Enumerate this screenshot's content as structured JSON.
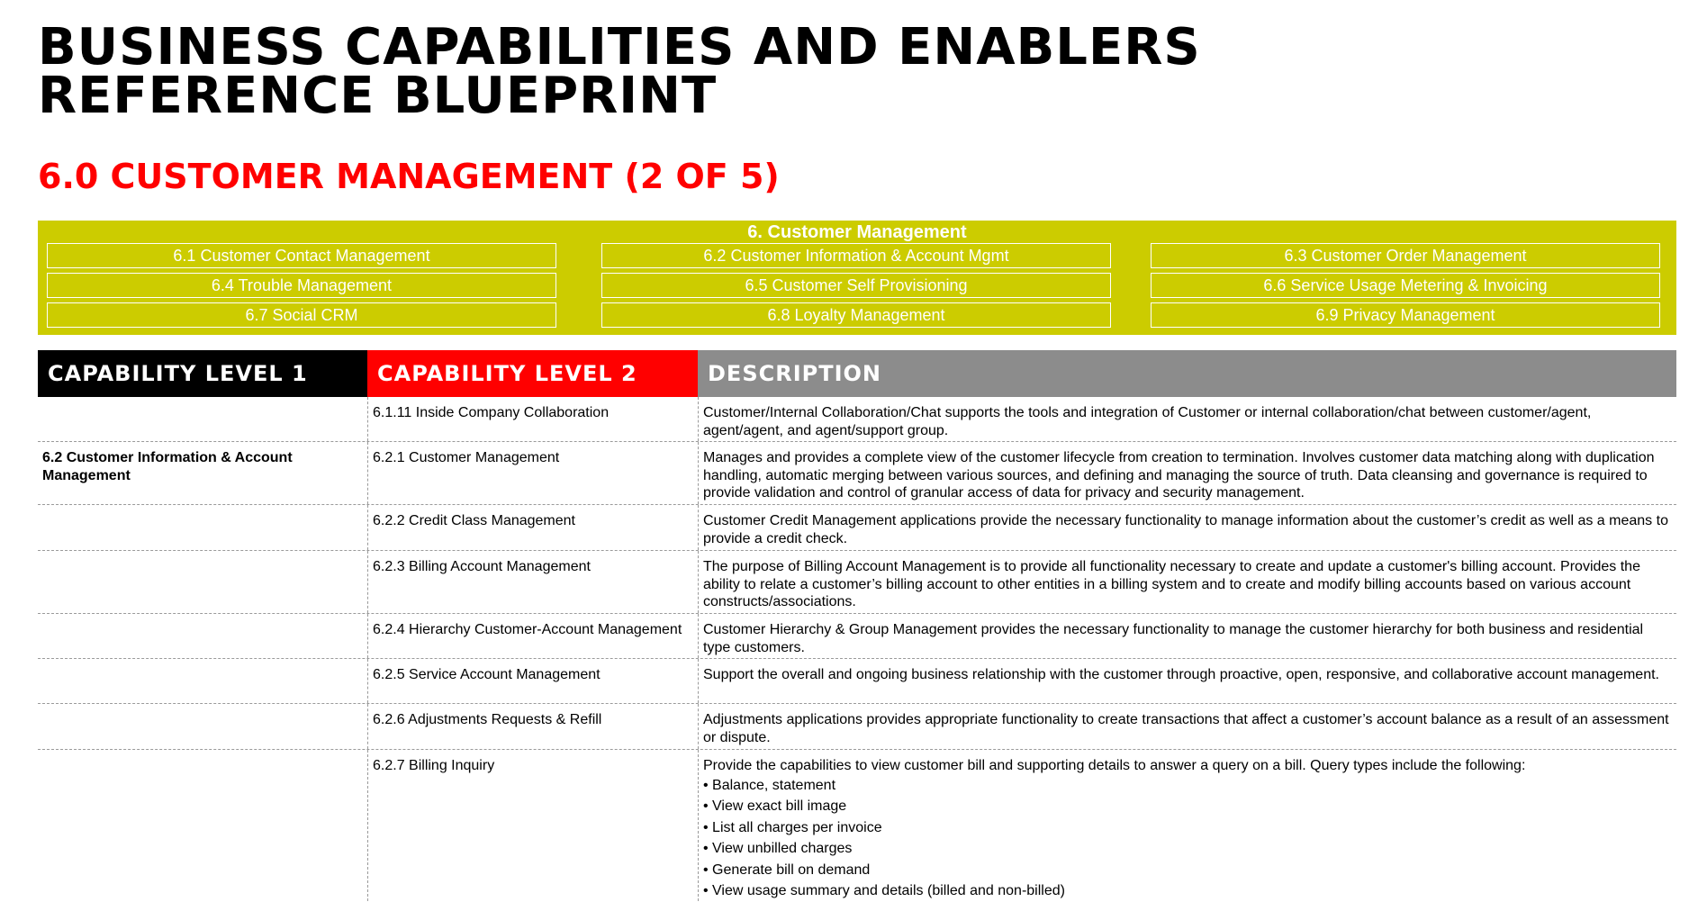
{
  "header": {
    "title_line1": "BUSINESS CAPABILITIES AND ENABLERS",
    "title_line2": "REFERENCE BLUEPRINT",
    "subtitle": "6.0 CUSTOMER MANAGEMENT (2 OF 5)"
  },
  "overview": {
    "heading": "6. Customer Management",
    "cells": [
      "6.1 Customer Contact Management",
      "6.2 Customer Information & Account Mgmt",
      "6.3 Customer Order Management",
      "6.4 Trouble Management",
      "6.5 Customer Self Provisioning",
      "6.6 Service Usage Metering & Invoicing",
      "6.7 Social CRM",
      "6.8 Loyalty Management",
      "6.9 Privacy Management"
    ]
  },
  "table": {
    "headers": [
      "CAPABILITY LEVEL 1",
      "CAPABILITY LEVEL 2",
      "DESCRIPTION"
    ],
    "rows": [
      {
        "level1": "",
        "level2": "6.1.11 Inside Company Collaboration",
        "description": "Customer/Internal Collaboration/Chat supports the tools and integration of Customer or internal collaboration/chat between customer/agent, agent/agent, and agent/support group."
      },
      {
        "level1": "6.2 Customer Information & Account Management",
        "level2": "6.2.1 Customer Management",
        "description": "Manages and provides a complete view of the customer lifecycle from creation to termination. Involves customer data matching along with duplication handling, automatic merging between various sources, and defining and managing the source of truth. Data cleansing and governance is required to provide validation and control of granular access of data for privacy and security management."
      },
      {
        "level1": "",
        "level2": "6.2.2 Credit Class Management",
        "description": "Customer Credit Management applications provide the necessary functionality to manage information about the customer’s credit as well as a means to provide a credit check."
      },
      {
        "level1": "",
        "level2": "6.2.3 Billing Account Management",
        "description": "The purpose of Billing Account Management is to provide all functionality necessary to create and update a customer's billing account. Provides the ability to relate a customer’s billing account to other entities in a billing system and to create and modify billing accounts based on various account constructs/associations."
      },
      {
        "level1": "",
        "level2": "6.2.4 Hierarchy Customer-Account Management",
        "description": "Customer Hierarchy & Group Management provides the necessary functionality to manage the customer hierarchy for both business and residential type customers."
      },
      {
        "level1": "",
        "level2": "6.2.5 Service Account Management",
        "description": "Support the overall and ongoing business relationship with the customer through proactive, open, responsive, and collaborative account management."
      },
      {
        "level1": "",
        "level2": "6.2.6 Adjustments Requests & Refill",
        "description": "Adjustments applications provides appropriate functionality to create transactions that affect a customer’s account balance as a result of an assessment or dispute."
      },
      {
        "level1": "",
        "level2": "6.2.7 Billing Inquiry",
        "description": "Provide the capabilities to view customer bill and supporting details to answer a query on a bill. Query types include the following:",
        "bullets": [
          "Balance, statement",
          "View exact bill image",
          "List all charges per invoice",
          "View unbilled charges",
          "Generate bill on demand",
          "View usage summary and details (billed and non-billed)"
        ]
      }
    ]
  }
}
